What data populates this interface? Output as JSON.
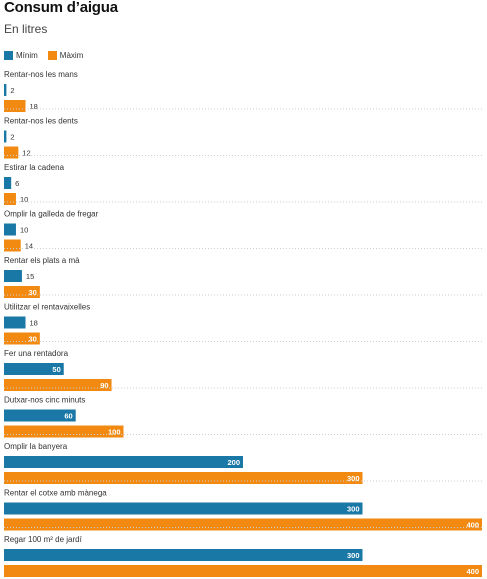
{
  "colors": {
    "min": "#1a78a6",
    "max": "#f28a11"
  },
  "chart_data": {
    "type": "bar",
    "orientation": "horizontal",
    "title": "Consum d’aigua",
    "subtitle": "En litres",
    "legend": "top-left",
    "grid": false,
    "xlim": [
      0,
      400
    ],
    "categories": [
      "Rentar-nos les mans",
      "Rentar-nos les dents",
      "Estirar la cadena",
      "Omplir la galleda de fregar",
      "Rentar els plats a mà",
      "Utilitzar el rentavaixelles",
      "Fer una rentadora",
      "Dutxar-nos cinc minuts",
      "Omplir la banyera",
      "Rentar el cotxe amb mànega",
      "Regar 100 m² de jardí"
    ],
    "series": [
      {
        "name": "Mínim",
        "values": [
          2,
          2,
          6,
          10,
          15,
          18,
          50,
          60,
          200,
          300,
          300
        ]
      },
      {
        "name": "Màxim",
        "values": [
          18,
          12,
          10,
          14,
          30,
          30,
          90,
          100,
          300,
          400,
          400
        ]
      }
    ]
  }
}
